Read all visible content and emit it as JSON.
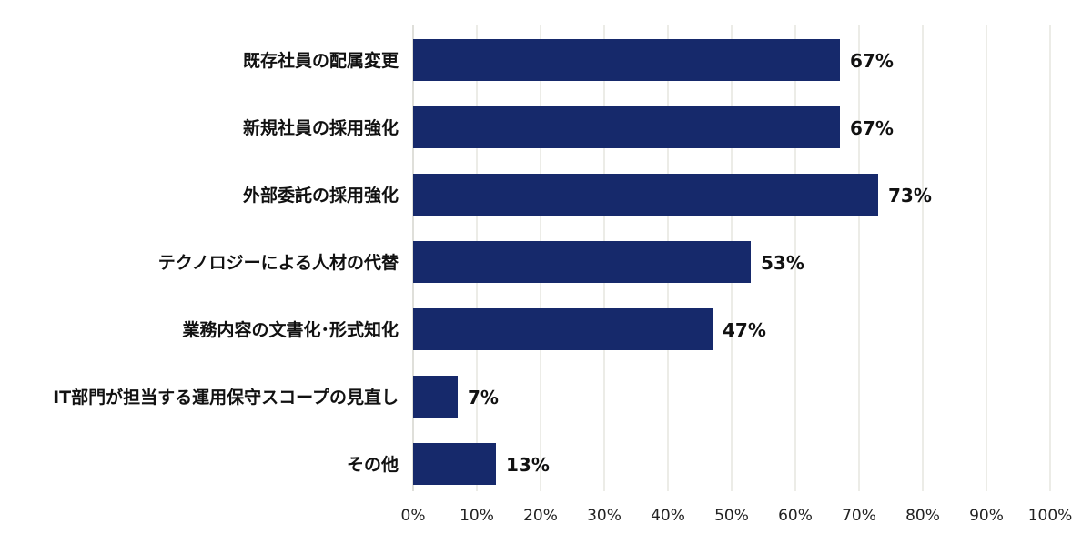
{
  "chart_data": {
    "type": "bar",
    "orientation": "horizontal",
    "categories": [
      "既存社員の配属変更",
      "新規社員の採用強化",
      "外部委託の採用強化",
      "テクノロジーによる人材の代替",
      "業務内容の文書化･形式知化",
      "IT部門が担当する運用保守スコープの見直し",
      "その他"
    ],
    "values": [
      67,
      67,
      73,
      53,
      47,
      7,
      13
    ],
    "value_labels": [
      "67%",
      "67%",
      "73%",
      "53%",
      "47%",
      "7%",
      "13%"
    ],
    "x_ticks": [
      "0%",
      "10%",
      "20%",
      "30%",
      "40%",
      "50%",
      "60%",
      "70%",
      "80%",
      "90%",
      "100%"
    ],
    "xlim": [
      0,
      100
    ],
    "title": "",
    "xlabel": "",
    "ylabel": "",
    "grid": true,
    "legend": "none",
    "colors": {
      "bar": "#16296b",
      "grid": "#d9d9cf",
      "axis": "#bfbfb5"
    }
  }
}
